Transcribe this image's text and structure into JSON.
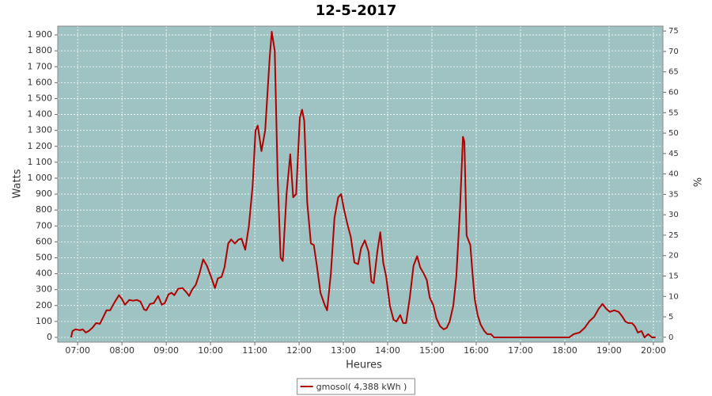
{
  "chart_data": {
    "type": "line",
    "title": "12-5-2017",
    "x_label": "Heures",
    "y_label": "Watts",
    "y2_label": "%",
    "x": [
      "06:51",
      "06:53",
      "06:57",
      "07:03",
      "07:07",
      "07:11",
      "07:15",
      "07:20",
      "07:25",
      "07:30",
      "07:35",
      "07:39",
      "07:44",
      "07:50",
      "07:56",
      "08:00",
      "08:04",
      "08:10",
      "08:15",
      "08:20",
      "08:25",
      "08:30",
      "08:33",
      "08:38",
      "08:43",
      "08:49",
      "08:54",
      "08:58",
      "09:03",
      "09:07",
      "09:11",
      "09:16",
      "09:22",
      "09:27",
      "09:31",
      "09:35",
      "09:40",
      "09:45",
      "09:50",
      "09:55",
      "10:00",
      "10:06",
      "10:10",
      "10:15",
      "10:19",
      "10:24",
      "10:28",
      "10:33",
      "10:38",
      "10:42",
      "10:47",
      "10:52",
      "10:57",
      "11:01",
      "11:04",
      "11:09",
      "11:14",
      "11:20",
      "11:23",
      "11:27",
      "11:31",
      "11:35",
      "11:38",
      "11:43",
      "11:48",
      "11:52",
      "11:56",
      "12:01",
      "12:04",
      "12:07",
      "12:11",
      "12:16",
      "12:20",
      "12:24",
      "12:29",
      "12:35",
      "12:38",
      "12:43",
      "12:48",
      "12:53",
      "12:57",
      "13:01",
      "13:05",
      "13:10",
      "13:15",
      "13:20",
      "13:24",
      "13:29",
      "13:34",
      "13:38",
      "13:41",
      "13:46",
      "13:50",
      "13:54",
      "13:58",
      "14:03",
      "14:08",
      "14:12",
      "14:17",
      "14:21",
      "14:25",
      "14:30",
      "14:35",
      "14:40",
      "14:44",
      "14:49",
      "14:53",
      "14:57",
      "15:02",
      "15:06",
      "15:11",
      "15:16",
      "15:20",
      "15:24",
      "15:29",
      "15:33",
      "15:38",
      "15:42",
      "15:44",
      "15:47",
      "15:52",
      "15:55",
      "15:58",
      "16:02",
      "16:06",
      "16:11",
      "16:15",
      "16:20",
      "16:24",
      "17:00",
      "17:30",
      "18:00",
      "18:06",
      "18:12",
      "18:20",
      "18:27",
      "18:33",
      "18:40",
      "18:46",
      "18:51",
      "18:56",
      "19:01",
      "19:07",
      "19:13",
      "19:18",
      "19:22",
      "19:26",
      "19:31",
      "19:35",
      "19:39",
      "19:44",
      "19:48",
      "19:53",
      "19:58",
      "20:03"
    ],
    "series": [
      {
        "name": "gmosol( 4,388 kWh )",
        "color": "#b00000",
        "values": [
          0,
          40,
          50,
          45,
          50,
          30,
          40,
          60,
          90,
          85,
          130,
          170,
          170,
          220,
          265,
          240,
          205,
          235,
          230,
          235,
          225,
          175,
          170,
          210,
          215,
          260,
          205,
          215,
          270,
          280,
          265,
          305,
          310,
          285,
          260,
          300,
          330,
          400,
          490,
          450,
          390,
          310,
          370,
          380,
          440,
          590,
          615,
          590,
          615,
          620,
          550,
          700,
          950,
          1300,
          1330,
          1170,
          1300,
          1750,
          1920,
          1800,
          1000,
          500,
          480,
          900,
          1150,
          880,
          900,
          1380,
          1430,
          1360,
          850,
          590,
          580,
          450,
          280,
          200,
          170,
          400,
          750,
          880,
          900,
          800,
          720,
          630,
          470,
          460,
          560,
          610,
          540,
          350,
          340,
          540,
          660,
          470,
          380,
          200,
          110,
          100,
          140,
          90,
          90,
          250,
          450,
          510,
          440,
          400,
          360,
          250,
          200,
          120,
          70,
          50,
          60,
          100,
          200,
          380,
          800,
          1260,
          1230,
          640,
          580,
          400,
          240,
          140,
          80,
          40,
          20,
          20,
          0,
          0,
          0,
          0,
          0,
          20,
          30,
          60,
          100,
          130,
          180,
          210,
          180,
          160,
          170,
          160,
          130,
          100,
          90,
          90,
          70,
          30,
          40,
          0,
          20,
          0,
          0
        ]
      }
    ],
    "xlim": [
      "06:33",
      "20:13"
    ],
    "xticks": [
      "07:00",
      "08:00",
      "09:00",
      "10:00",
      "11:00",
      "12:00",
      "13:00",
      "14:00",
      "15:00",
      "16:00",
      "17:00",
      "18:00",
      "19:00",
      "20:00"
    ],
    "ylim": [
      -30,
      1955
    ],
    "yticks": [
      0,
      100,
      200,
      300,
      400,
      500,
      600,
      700,
      800,
      900,
      {
        "value": 1000,
        "label": "1 000"
      },
      {
        "value": 1100,
        "label": "1 100"
      },
      {
        "value": 1200,
        "label": "1 200"
      },
      {
        "value": 1300,
        "label": "1 300"
      },
      {
        "value": 1400,
        "label": "1 400"
      },
      {
        "value": 1500,
        "label": "1 500"
      },
      {
        "value": 1600,
        "label": "1 600"
      },
      {
        "value": 1700,
        "label": "1 700"
      },
      {
        "value": 1800,
        "label": "1 800"
      },
      {
        "value": 1900,
        "label": "1 900"
      }
    ],
    "y2lim": [
      -1.2,
      76.2
    ],
    "y2ticks": [
      0,
      5,
      10,
      15,
      20,
      25,
      30,
      35,
      40,
      45,
      50,
      55,
      60,
      65,
      70,
      75
    ],
    "grid": true,
    "legend": "bottom",
    "plot_background": "#9fc2c2"
  }
}
